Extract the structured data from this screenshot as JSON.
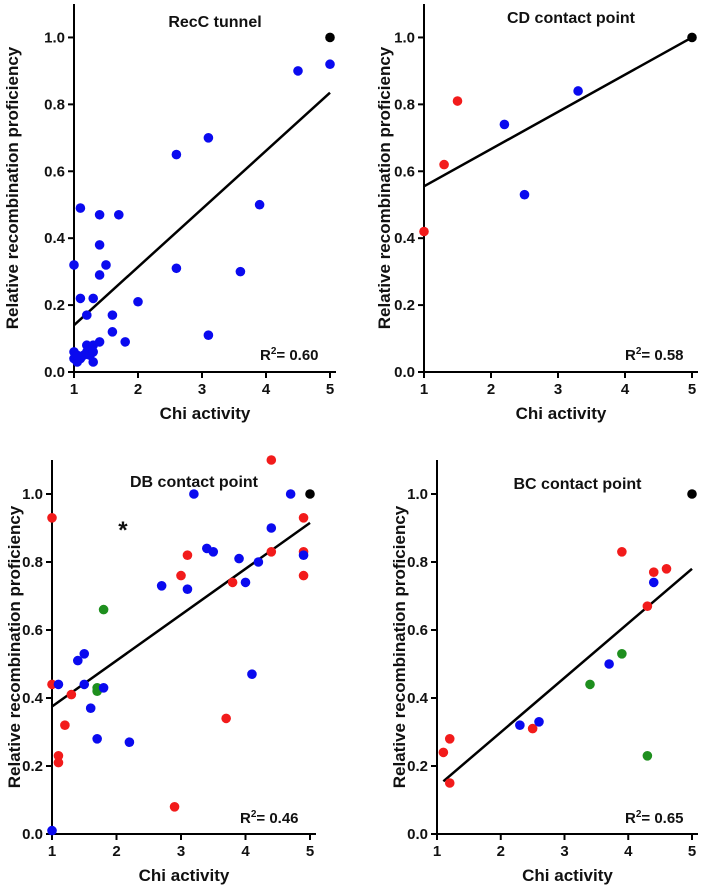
{
  "colors": {
    "blue": "#0a0aef",
    "red": "#f21b1b",
    "green": "#1e8f1e",
    "black": "#000000",
    "axis": "#000000"
  },
  "chart_data": [
    {
      "type": "scatter",
      "title": "RecC tunnel",
      "xlabel": "Chi activity",
      "ylabel": "Relative recombination proficiency",
      "xlim": [
        1,
        5
      ],
      "ylim": [
        0,
        1.1
      ],
      "xticks": [
        "1",
        "2",
        "3",
        "4",
        "5"
      ],
      "yticks": [
        "0.0",
        "0.2",
        "0.4",
        "0.6",
        "0.8",
        "1.0"
      ],
      "r2_prefix": "R",
      "r2_sup": "2",
      "r2_value": "= 0.60",
      "fit": {
        "x0": 1,
        "y0": 0.14,
        "x1": 5,
        "y1": 0.835
      },
      "annotation": "",
      "points": [
        {
          "x": 1.0,
          "y": 0.32,
          "c": "blue"
        },
        {
          "x": 1.0,
          "y": 0.06,
          "c": "blue"
        },
        {
          "x": 1.0,
          "y": 0.04,
          "c": "blue"
        },
        {
          "x": 1.05,
          "y": 0.03,
          "c": "blue"
        },
        {
          "x": 1.05,
          "y": 0.05,
          "c": "blue"
        },
        {
          "x": 1.1,
          "y": 0.49,
          "c": "blue"
        },
        {
          "x": 1.1,
          "y": 0.22,
          "c": "blue"
        },
        {
          "x": 1.1,
          "y": 0.04,
          "c": "blue"
        },
        {
          "x": 1.15,
          "y": 0.05,
          "c": "blue"
        },
        {
          "x": 1.2,
          "y": 0.17,
          "c": "blue"
        },
        {
          "x": 1.2,
          "y": 0.08,
          "c": "blue"
        },
        {
          "x": 1.2,
          "y": 0.06,
          "c": "blue"
        },
        {
          "x": 1.25,
          "y": 0.05,
          "c": "blue"
        },
        {
          "x": 1.3,
          "y": 0.22,
          "c": "blue"
        },
        {
          "x": 1.3,
          "y": 0.08,
          "c": "blue"
        },
        {
          "x": 1.3,
          "y": 0.06,
          "c": "blue"
        },
        {
          "x": 1.3,
          "y": 0.03,
          "c": "blue"
        },
        {
          "x": 1.4,
          "y": 0.47,
          "c": "blue"
        },
        {
          "x": 1.4,
          "y": 0.38,
          "c": "blue"
        },
        {
          "x": 1.4,
          "y": 0.29,
          "c": "blue"
        },
        {
          "x": 1.4,
          "y": 0.09,
          "c": "blue"
        },
        {
          "x": 1.5,
          "y": 0.32,
          "c": "blue"
        },
        {
          "x": 1.6,
          "y": 0.17,
          "c": "blue"
        },
        {
          "x": 1.6,
          "y": 0.12,
          "c": "blue"
        },
        {
          "x": 1.7,
          "y": 0.47,
          "c": "blue"
        },
        {
          "x": 1.8,
          "y": 0.09,
          "c": "blue"
        },
        {
          "x": 2.0,
          "y": 0.21,
          "c": "blue"
        },
        {
          "x": 2.6,
          "y": 0.65,
          "c": "blue"
        },
        {
          "x": 2.6,
          "y": 0.31,
          "c": "blue"
        },
        {
          "x": 3.1,
          "y": 0.7,
          "c": "blue"
        },
        {
          "x": 3.1,
          "y": 0.11,
          "c": "blue"
        },
        {
          "x": 3.6,
          "y": 0.3,
          "c": "blue"
        },
        {
          "x": 3.9,
          "y": 0.5,
          "c": "blue"
        },
        {
          "x": 4.5,
          "y": 0.9,
          "c": "blue"
        },
        {
          "x": 5.0,
          "y": 0.92,
          "c": "blue"
        },
        {
          "x": 5.0,
          "y": 1.0,
          "c": "black"
        }
      ]
    },
    {
      "type": "scatter",
      "title": "CD contact point",
      "xlabel": "Chi activity",
      "ylabel": "Relative recombination proficiency",
      "xlim": [
        1,
        5
      ],
      "ylim": [
        0,
        1.1
      ],
      "xticks": [
        "1",
        "2",
        "3",
        "4",
        "5"
      ],
      "yticks": [
        "0.0",
        "0.2",
        "0.4",
        "0.6",
        "0.8",
        "1.0"
      ],
      "r2_prefix": "R",
      "r2_sup": "2",
      "r2_value": "= 0.58",
      "fit": {
        "x0": 1,
        "y0": 0.555,
        "x1": 5,
        "y1": 1.0
      },
      "annotation": "",
      "points": [
        {
          "x": 1.0,
          "y": 0.42,
          "c": "red"
        },
        {
          "x": 1.3,
          "y": 0.62,
          "c": "red"
        },
        {
          "x": 1.5,
          "y": 0.81,
          "c": "red"
        },
        {
          "x": 2.2,
          "y": 0.74,
          "c": "blue"
        },
        {
          "x": 2.5,
          "y": 0.53,
          "c": "blue"
        },
        {
          "x": 3.3,
          "y": 0.84,
          "c": "blue"
        },
        {
          "x": 5.0,
          "y": 1.0,
          "c": "black"
        }
      ]
    },
    {
      "type": "scatter",
      "title": "DB contact point",
      "xlabel": "Chi activity",
      "ylabel": "Relative recombination proficiency",
      "xlim": [
        1,
        5
      ],
      "ylim": [
        0,
        1.1
      ],
      "xticks": [
        "1",
        "2",
        "3",
        "4",
        "5"
      ],
      "yticks": [
        "0.0",
        "0.2",
        "0.4",
        "0.6",
        "0.8",
        "1.0"
      ],
      "r2_prefix": "R",
      "r2_sup": "2",
      "r2_value": "= 0.46",
      "fit": {
        "x0": 1,
        "y0": 0.375,
        "x1": 5,
        "y1": 0.915
      },
      "annotation": "*",
      "annotation_x": 2.1,
      "annotation_y": 0.9,
      "points": [
        {
          "x": 1.0,
          "y": 0.93,
          "c": "red"
        },
        {
          "x": 1.0,
          "y": 0.44,
          "c": "red"
        },
        {
          "x": 1.0,
          "y": 0.01,
          "c": "blue"
        },
        {
          "x": 1.1,
          "y": 0.44,
          "c": "blue"
        },
        {
          "x": 1.1,
          "y": 0.23,
          "c": "red"
        },
        {
          "x": 1.1,
          "y": 0.21,
          "c": "red"
        },
        {
          "x": 1.2,
          "y": 0.32,
          "c": "red"
        },
        {
          "x": 1.3,
          "y": 0.41,
          "c": "red"
        },
        {
          "x": 1.4,
          "y": 0.51,
          "c": "blue"
        },
        {
          "x": 1.5,
          "y": 0.53,
          "c": "blue"
        },
        {
          "x": 1.5,
          "y": 0.44,
          "c": "blue"
        },
        {
          "x": 1.6,
          "y": 0.37,
          "c": "blue"
        },
        {
          "x": 1.7,
          "y": 0.43,
          "c": "green"
        },
        {
          "x": 1.7,
          "y": 0.42,
          "c": "green"
        },
        {
          "x": 1.7,
          "y": 0.28,
          "c": "blue"
        },
        {
          "x": 1.8,
          "y": 0.66,
          "c": "green"
        },
        {
          "x": 1.8,
          "y": 0.43,
          "c": "blue"
        },
        {
          "x": 2.2,
          "y": 0.27,
          "c": "blue"
        },
        {
          "x": 2.7,
          "y": 0.73,
          "c": "blue"
        },
        {
          "x": 2.9,
          "y": 0.08,
          "c": "red"
        },
        {
          "x": 3.0,
          "y": 0.76,
          "c": "red"
        },
        {
          "x": 3.1,
          "y": 0.82,
          "c": "red"
        },
        {
          "x": 3.1,
          "y": 0.72,
          "c": "blue"
        },
        {
          "x": 3.2,
          "y": 1.0,
          "c": "blue"
        },
        {
          "x": 3.4,
          "y": 0.84,
          "c": "blue"
        },
        {
          "x": 3.5,
          "y": 0.83,
          "c": "blue"
        },
        {
          "x": 3.7,
          "y": 0.34,
          "c": "red"
        },
        {
          "x": 3.8,
          "y": 0.74,
          "c": "red"
        },
        {
          "x": 3.9,
          "y": 0.81,
          "c": "blue"
        },
        {
          "x": 4.0,
          "y": 0.74,
          "c": "blue"
        },
        {
          "x": 4.1,
          "y": 0.47,
          "c": "blue"
        },
        {
          "x": 4.2,
          "y": 0.8,
          "c": "blue"
        },
        {
          "x": 4.4,
          "y": 1.1,
          "c": "red"
        },
        {
          "x": 4.4,
          "y": 0.9,
          "c": "blue"
        },
        {
          "x": 4.4,
          "y": 0.83,
          "c": "red"
        },
        {
          "x": 4.7,
          "y": 1.0,
          "c": "blue"
        },
        {
          "x": 4.9,
          "y": 0.93,
          "c": "red"
        },
        {
          "x": 4.9,
          "y": 0.83,
          "c": "red"
        },
        {
          "x": 4.9,
          "y": 0.82,
          "c": "blue"
        },
        {
          "x": 4.9,
          "y": 0.76,
          "c": "red"
        },
        {
          "x": 5.0,
          "y": 1.0,
          "c": "black"
        }
      ]
    },
    {
      "type": "scatter",
      "title": "BC contact point",
      "xlabel": "Chi activity",
      "ylabel": "Relative recombination proficiency",
      "xlim": [
        1,
        5
      ],
      "ylim": [
        0,
        1.1
      ],
      "xticks": [
        "1",
        "2",
        "3",
        "4",
        "5"
      ],
      "yticks": [
        "0.0",
        "0.2",
        "0.4",
        "0.6",
        "0.8",
        "1.0"
      ],
      "r2_prefix": "R",
      "r2_sup": "2",
      "r2_value": "= 0.65",
      "fit": {
        "x0": 1.1,
        "y0": 0.155,
        "x1": 5,
        "y1": 0.78
      },
      "annotation": "",
      "points": [
        {
          "x": 1.1,
          "y": 0.24,
          "c": "red"
        },
        {
          "x": 1.2,
          "y": 0.28,
          "c": "red"
        },
        {
          "x": 1.2,
          "y": 0.15,
          "c": "red"
        },
        {
          "x": 2.3,
          "y": 0.32,
          "c": "blue"
        },
        {
          "x": 2.5,
          "y": 0.31,
          "c": "red"
        },
        {
          "x": 2.6,
          "y": 0.33,
          "c": "blue"
        },
        {
          "x": 3.4,
          "y": 0.44,
          "c": "green"
        },
        {
          "x": 3.7,
          "y": 0.5,
          "c": "blue"
        },
        {
          "x": 3.9,
          "y": 0.83,
          "c": "red"
        },
        {
          "x": 3.9,
          "y": 0.53,
          "c": "green"
        },
        {
          "x": 4.3,
          "y": 0.67,
          "c": "red"
        },
        {
          "x": 4.3,
          "y": 0.23,
          "c": "green"
        },
        {
          "x": 4.4,
          "y": 0.77,
          "c": "red"
        },
        {
          "x": 4.4,
          "y": 0.74,
          "c": "blue"
        },
        {
          "x": 4.6,
          "y": 0.78,
          "c": "red"
        },
        {
          "x": 5.0,
          "y": 1.0,
          "c": "black"
        }
      ]
    }
  ]
}
